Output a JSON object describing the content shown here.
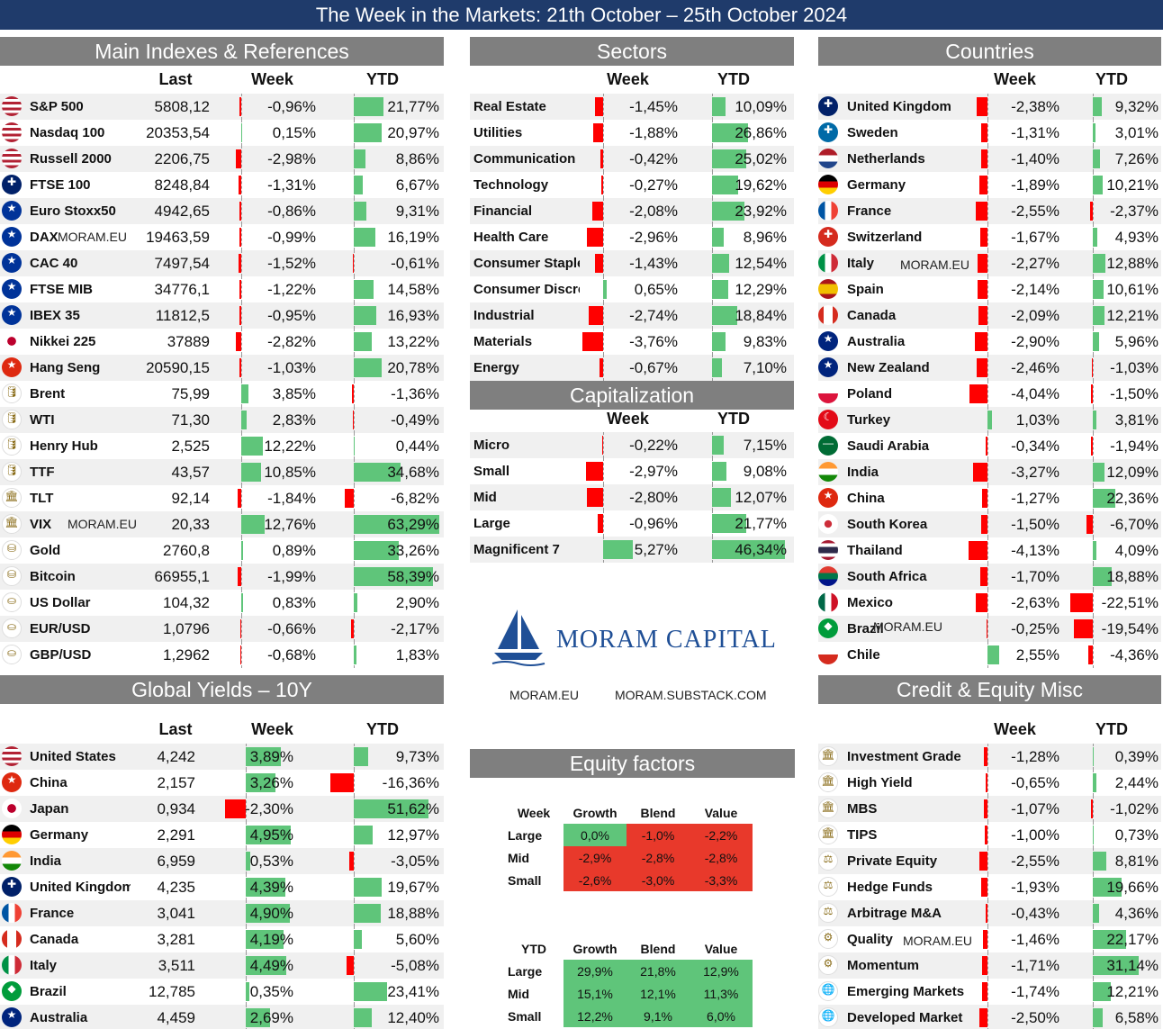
{
  "title": "The Week in the Markets: 21th October – 25th October 2024",
  "watermark": "MORAM.EU",
  "colors": {
    "banner": "#1f3b6b",
    "section": "#7f7f7f",
    "positive": "#5fc57a",
    "negative": "#ff0000"
  },
  "logo": {
    "text": "MORAM CAPITAL",
    "icon": "sailboat-icon"
  },
  "links": [
    "MORAM.EU",
    "MORAM.SUBSTACK.COM"
  ],
  "chart_data": [
    {
      "type": "table",
      "title": "Main Indexes & References",
      "columns": [
        "Last",
        "Week",
        "YTD"
      ],
      "rows": [
        {
          "icon": "us-flag",
          "name": "S&P 500",
          "last": "5808,12",
          "week": -0.96,
          "ytd": 21.77,
          "week_text": "-0,96%",
          "ytd_text": "21,77%"
        },
        {
          "icon": "us-flag",
          "name": "Nasdaq 100",
          "last": "20353,54",
          "week": 0.15,
          "ytd": 20.97,
          "week_text": "0,15%",
          "ytd_text": "20,97%"
        },
        {
          "icon": "us-flag",
          "name": "Russell 2000",
          "last": "2206,75",
          "week": -2.98,
          "ytd": 8.86,
          "week_text": "-2,98%",
          "ytd_text": "8,86%"
        },
        {
          "icon": "uk-flag",
          "name": "FTSE 100",
          "last": "8248,84",
          "week": -1.31,
          "ytd": 6.67,
          "week_text": "-1,31%",
          "ytd_text": "6,67%"
        },
        {
          "icon": "eu-flag",
          "name": "Euro Stoxx50",
          "last": "4942,65",
          "week": -0.86,
          "ytd": 9.31,
          "week_text": "-0,86%",
          "ytd_text": "9,31%"
        },
        {
          "icon": "eu-flag",
          "name": "DAX",
          "last": "19463,59",
          "week": -0.99,
          "ytd": 16.19,
          "week_text": "-0,99%",
          "ytd_text": "16,19%"
        },
        {
          "icon": "eu-flag",
          "name": "CAC 40",
          "last": "7497,54",
          "week": -1.52,
          "ytd": -0.61,
          "week_text": "-1,52%",
          "ytd_text": "-0,61%"
        },
        {
          "icon": "eu-flag",
          "name": "FTSE MIB",
          "last": "34776,1",
          "week": -1.22,
          "ytd": 14.58,
          "week_text": "-1,22%",
          "ytd_text": "14,58%"
        },
        {
          "icon": "eu-flag",
          "name": "IBEX 35",
          "last": "11812,5",
          "week": -0.95,
          "ytd": 16.93,
          "week_text": "-0,95%",
          "ytd_text": "16,93%"
        },
        {
          "icon": "japan-flag",
          "name": "Nikkei 225",
          "last": "37889",
          "week": -2.82,
          "ytd": 13.22,
          "week_text": "-2,82%",
          "ytd_text": "13,22%"
        },
        {
          "icon": "china-flag",
          "name": "Hang Seng",
          "last": "20590,15",
          "week": -1.03,
          "ytd": 20.78,
          "week_text": "-1,03%",
          "ytd_text": "20,78%"
        },
        {
          "icon": "oil-icon",
          "name": "Brent",
          "last": "75,99",
          "week": 3.85,
          "ytd": -1.36,
          "week_text": "3,85%",
          "ytd_text": "-1,36%"
        },
        {
          "icon": "oil-icon",
          "name": "WTI",
          "last": "71,30",
          "week": 2.83,
          "ytd": -0.49,
          "week_text": "2,83%",
          "ytd_text": "-0,49%"
        },
        {
          "icon": "oil-icon",
          "name": "Henry Hub",
          "last": "2,525",
          "week": 12.22,
          "ytd": 0.44,
          "week_text": "12,22%",
          "ytd_text": "0,44%"
        },
        {
          "icon": "oil-icon",
          "name": "TTF",
          "last": "43,57",
          "week": 10.85,
          "ytd": 34.68,
          "week_text": "10,85%",
          "ytd_text": "34,68%"
        },
        {
          "icon": "bank-icon",
          "name": "TLT",
          "last": "92,14",
          "week": -1.84,
          "ytd": -6.82,
          "week_text": "-1,84%",
          "ytd_text": "-6,82%"
        },
        {
          "icon": "bank-icon",
          "name": "VIX",
          "last": "20,33",
          "week": 12.76,
          "ytd": 63.29,
          "week_text": "12,76%",
          "ytd_text": "63,29%"
        },
        {
          "icon": "gold-icon",
          "name": "Gold",
          "last": "2760,8",
          "week": 0.89,
          "ytd": 33.26,
          "week_text": "0,89%",
          "ytd_text": "33,26%"
        },
        {
          "icon": "gold-icon",
          "name": "Bitcoin",
          "last": "66955,1",
          "week": -1.99,
          "ytd": 58.39,
          "week_text": "-1,99%",
          "ytd_text": "58,39%"
        },
        {
          "icon": "coins-icon",
          "name": "US Dollar",
          "last": "104,32",
          "week": 0.83,
          "ytd": 2.9,
          "week_text": "0,83%",
          "ytd_text": "2,90%"
        },
        {
          "icon": "coins-icon",
          "name": "EUR/USD",
          "last": "1,0796",
          "week": -0.66,
          "ytd": -2.17,
          "week_text": "-0,66%",
          "ytd_text": "-2,17%"
        },
        {
          "icon": "coins-icon",
          "name": "GBP/USD",
          "last": "1,2962",
          "week": -0.68,
          "ytd": 1.83,
          "week_text": "-0,68%",
          "ytd_text": "1,83%"
        }
      ]
    },
    {
      "type": "table",
      "title": "Global Yields – 10Y",
      "columns": [
        "Last",
        "Week",
        "YTD"
      ],
      "rows": [
        {
          "icon": "us-flag",
          "name": "United States",
          "last": "4,242",
          "week": 3.89,
          "ytd": 9.73,
          "week_text": "3,89%",
          "ytd_text": "9,73%"
        },
        {
          "icon": "china-flag",
          "name": "China",
          "last": "2,157",
          "week": 3.26,
          "ytd": -16.36,
          "week_text": "3,26%",
          "ytd_text": "-16,36%"
        },
        {
          "icon": "japan-flag",
          "name": "Japan",
          "last": "0,934",
          "week": -2.3,
          "ytd": 51.62,
          "week_text": "-2,30%",
          "ytd_text": "51,62%"
        },
        {
          "icon": "germany-flag",
          "name": "Germany",
          "last": "2,291",
          "week": 4.95,
          "ytd": 12.97,
          "week_text": "4,95%",
          "ytd_text": "12,97%"
        },
        {
          "icon": "india-flag",
          "name": "India",
          "last": "6,959",
          "week": 0.53,
          "ytd": -3.05,
          "week_text": "0,53%",
          "ytd_text": "-3,05%"
        },
        {
          "icon": "uk-flag",
          "name": "United Kingdom",
          "last": "4,235",
          "week": 4.39,
          "ytd": 19.67,
          "week_text": "4,39%",
          "ytd_text": "19,67%"
        },
        {
          "icon": "france-flag",
          "name": "France",
          "last": "3,041",
          "week": 4.9,
          "ytd": 18.88,
          "week_text": "4,90%",
          "ytd_text": "18,88%"
        },
        {
          "icon": "canada-flag",
          "name": "Canada",
          "last": "3,281",
          "week": 4.19,
          "ytd": 5.6,
          "week_text": "4,19%",
          "ytd_text": "5,60%"
        },
        {
          "icon": "italy-flag",
          "name": "Italy",
          "last": "3,511",
          "week": 4.49,
          "ytd": -5.08,
          "week_text": "4,49%",
          "ytd_text": "-5,08%"
        },
        {
          "icon": "brazil-flag",
          "name": "Brazil",
          "last": "12,785",
          "week": 0.35,
          "ytd": 23.41,
          "week_text": "0,35%",
          "ytd_text": "23,41%"
        },
        {
          "icon": "australia-flag",
          "name": "Australia",
          "last": "4,459",
          "week": 2.69,
          "ytd": 12.4,
          "week_text": "2,69%",
          "ytd_text": "12,40%"
        }
      ]
    },
    {
      "type": "table",
      "title": "Sectors",
      "columns": [
        "Week",
        "YTD"
      ],
      "rows": [
        {
          "name": "Real Estate",
          "week": -1.45,
          "ytd": 10.09,
          "week_text": "-1,45%",
          "ytd_text": "10,09%"
        },
        {
          "name": "Utilities",
          "week": -1.88,
          "ytd": 26.86,
          "week_text": "-1,88%",
          "ytd_text": "26,86%"
        },
        {
          "name": "Communication",
          "week": -0.42,
          "ytd": 25.02,
          "week_text": "-0,42%",
          "ytd_text": "25,02%"
        },
        {
          "name": "Technology",
          "week": -0.27,
          "ytd": 19.62,
          "week_text": "-0,27%",
          "ytd_text": "19,62%"
        },
        {
          "name": "Financial",
          "week": -2.08,
          "ytd": 23.92,
          "week_text": "-2,08%",
          "ytd_text": "23,92%"
        },
        {
          "name": "Health Care",
          "week": -2.96,
          "ytd": 8.96,
          "week_text": "-2,96%",
          "ytd_text": "8,96%"
        },
        {
          "name": "Consumer Staple",
          "week": -1.43,
          "ytd": 12.54,
          "week_text": "-1,43%",
          "ytd_text": "12,54%"
        },
        {
          "name": "Consumer Discre",
          "week": 0.65,
          "ytd": 12.29,
          "week_text": "0,65%",
          "ytd_text": "12,29%"
        },
        {
          "name": "Industrial",
          "week": -2.74,
          "ytd": 18.84,
          "week_text": "-2,74%",
          "ytd_text": "18,84%"
        },
        {
          "name": "Materials",
          "week": -3.76,
          "ytd": 9.83,
          "week_text": "-3,76%",
          "ytd_text": "9,83%"
        },
        {
          "name": "Energy",
          "week": -0.67,
          "ytd": 7.1,
          "week_text": "-0,67%",
          "ytd_text": "7,10%"
        }
      ]
    },
    {
      "type": "table",
      "title": "Capitalization",
      "columns": [
        "Week",
        "YTD"
      ],
      "rows": [
        {
          "name": "Micro",
          "week": -0.22,
          "ytd": 7.15,
          "week_text": "-0,22%",
          "ytd_text": "7,15%"
        },
        {
          "name": "Small",
          "week": -2.97,
          "ytd": 9.08,
          "week_text": "-2,97%",
          "ytd_text": "9,08%"
        },
        {
          "name": "Mid",
          "week": -2.8,
          "ytd": 12.07,
          "week_text": "-2,80%",
          "ytd_text": "12,07%"
        },
        {
          "name": "Large",
          "week": -0.96,
          "ytd": 21.77,
          "week_text": "-0,96%",
          "ytd_text": "21,77%"
        },
        {
          "name": "Magnificent 7",
          "week": 5.27,
          "ytd": 46.34,
          "week_text": "5,27%",
          "ytd_text": "46,34%"
        }
      ]
    },
    {
      "type": "table",
      "title": "Countries",
      "columns": [
        "Week",
        "YTD"
      ],
      "rows": [
        {
          "icon": "uk-flag",
          "name": "United Kingdom",
          "week": -2.38,
          "ytd": 9.32,
          "week_text": "-2,38%",
          "ytd_text": "9,32%"
        },
        {
          "icon": "sweden-flag",
          "name": "Sweden",
          "week": -1.31,
          "ytd": 3.01,
          "week_text": "-1,31%",
          "ytd_text": "3,01%"
        },
        {
          "icon": "netherlands-flag",
          "name": "Netherlands",
          "week": -1.4,
          "ytd": 7.26,
          "week_text": "-1,40%",
          "ytd_text": "7,26%"
        },
        {
          "icon": "germany-flag",
          "name": "Germany",
          "week": -1.89,
          "ytd": 10.21,
          "week_text": "-1,89%",
          "ytd_text": "10,21%"
        },
        {
          "icon": "france-flag",
          "name": "France",
          "week": -2.55,
          "ytd": -2.37,
          "week_text": "-2,55%",
          "ytd_text": "-2,37%"
        },
        {
          "icon": "switzerland-flag",
          "name": "Switzerland",
          "week": -1.67,
          "ytd": 4.93,
          "week_text": "-1,67%",
          "ytd_text": "4,93%"
        },
        {
          "icon": "italy-flag",
          "name": "Italy",
          "week": -2.27,
          "ytd": 12.88,
          "week_text": "-2,27%",
          "ytd_text": "12,88%"
        },
        {
          "icon": "spain-flag",
          "name": "Spain",
          "week": -2.14,
          "ytd": 10.61,
          "week_text": "-2,14%",
          "ytd_text": "10,61%"
        },
        {
          "icon": "canada-flag",
          "name": "Canada",
          "week": -2.09,
          "ytd": 12.21,
          "week_text": "-2,09%",
          "ytd_text": "12,21%"
        },
        {
          "icon": "australia-flag",
          "name": "Australia",
          "week": -2.9,
          "ytd": 5.96,
          "week_text": "-2,90%",
          "ytd_text": "5,96%"
        },
        {
          "icon": "newzealand-flag",
          "name": "New Zealand",
          "week": -2.46,
          "ytd": -1.03,
          "week_text": "-2,46%",
          "ytd_text": "-1,03%"
        },
        {
          "icon": "poland-flag",
          "name": "Poland",
          "week": -4.04,
          "ytd": -1.5,
          "week_text": "-4,04%",
          "ytd_text": "-1,50%"
        },
        {
          "icon": "turkey-flag",
          "name": "Turkey",
          "week": 1.03,
          "ytd": 3.81,
          "week_text": "1,03%",
          "ytd_text": "3,81%"
        },
        {
          "icon": "saudi-flag",
          "name": "Saudi Arabia",
          "week": -0.34,
          "ytd": -1.94,
          "week_text": "-0,34%",
          "ytd_text": "-1,94%"
        },
        {
          "icon": "india-flag",
          "name": "India",
          "week": -3.27,
          "ytd": 12.09,
          "week_text": "-3,27%",
          "ytd_text": "12,09%"
        },
        {
          "icon": "china-flag",
          "name": "China",
          "week": -1.27,
          "ytd": 22.36,
          "week_text": "-1,27%",
          "ytd_text": "22,36%"
        },
        {
          "icon": "korea-flag",
          "name": "South Korea",
          "week": -1.5,
          "ytd": -6.7,
          "week_text": "-1,50%",
          "ytd_text": "-6,70%"
        },
        {
          "icon": "thailand-flag",
          "name": "Thailand",
          "week": -4.13,
          "ytd": 4.09,
          "week_text": "-4,13%",
          "ytd_text": "4,09%"
        },
        {
          "icon": "southafrica-flag",
          "name": "South Africa",
          "week": -1.7,
          "ytd": 18.88,
          "week_text": "-1,70%",
          "ytd_text": "18,88%"
        },
        {
          "icon": "mexico-flag",
          "name": "Mexico",
          "week": -2.63,
          "ytd": -22.51,
          "week_text": "-2,63%",
          "ytd_text": "-22,51%"
        },
        {
          "icon": "brazil-flag",
          "name": "Brazil",
          "week": -0.25,
          "ytd": -19.54,
          "week_text": "-0,25%",
          "ytd_text": "-19,54%"
        },
        {
          "icon": "chile-flag",
          "name": "Chile",
          "week": 2.55,
          "ytd": -4.36,
          "week_text": "2,55%",
          "ytd_text": "-4,36%"
        }
      ]
    },
    {
      "type": "table",
      "title": "Credit & Equity Misc",
      "columns": [
        "Week",
        "YTD"
      ],
      "rows": [
        {
          "icon": "bank-icon",
          "name": "Investment Grade",
          "week": -1.28,
          "ytd": 0.39,
          "week_text": "-1,28%",
          "ytd_text": "0,39%"
        },
        {
          "icon": "bank-icon",
          "name": "High Yield",
          "week": -0.65,
          "ytd": 2.44,
          "week_text": "-0,65%",
          "ytd_text": "2,44%"
        },
        {
          "icon": "bank-icon",
          "name": "MBS",
          "week": -1.07,
          "ytd": -1.02,
          "week_text": "-1,07%",
          "ytd_text": "-1,02%"
        },
        {
          "icon": "bank-icon",
          "name": "TIPS",
          "week": -1.0,
          "ytd": 0.73,
          "week_text": "-1,00%",
          "ytd_text": "0,73%"
        },
        {
          "icon": "scale-icon",
          "name": "Private Equity",
          "week": -2.55,
          "ytd": 8.81,
          "week_text": "-2,55%",
          "ytd_text": "8,81%"
        },
        {
          "icon": "scale-icon",
          "name": "Hedge Funds",
          "week": -1.93,
          "ytd": 19.66,
          "week_text": "-1,93%",
          "ytd_text": "19,66%"
        },
        {
          "icon": "scale-icon",
          "name": "Arbitrage M&A",
          "week": -0.43,
          "ytd": 4.36,
          "week_text": "-0,43%",
          "ytd_text": "4,36%"
        },
        {
          "icon": "gears-icon",
          "name": "Quality",
          "week": -1.46,
          "ytd": 22.17,
          "week_text": "-1,46%",
          "ytd_text": "22,17%"
        },
        {
          "icon": "gears-icon",
          "name": "Momentum",
          "week": -1.71,
          "ytd": 31.14,
          "week_text": "-1,71%",
          "ytd_text": "31,14%"
        },
        {
          "icon": "globe-icon",
          "name": "Emerging Markets",
          "week": -1.74,
          "ytd": 12.21,
          "week_text": "-1,74%",
          "ytd_text": "12,21%"
        },
        {
          "icon": "globe-icon",
          "name": "Developed Market",
          "week": -2.5,
          "ytd": 6.58,
          "week_text": "-2,50%",
          "ytd_text": "6,58%"
        }
      ]
    },
    {
      "type": "heatmap",
      "title": "Equity factors",
      "corner": "Week",
      "columns": [
        "Growth",
        "Blend",
        "Value"
      ],
      "rows": [
        "Large",
        "Mid",
        "Small"
      ],
      "values": [
        [
          "0,0%",
          "-1,0%",
          "-2,2%"
        ],
        [
          "-2,9%",
          "-2,8%",
          "-2,8%"
        ],
        [
          "-2,6%",
          "-3,0%",
          "-3,3%"
        ]
      ]
    },
    {
      "type": "heatmap",
      "corner": "YTD",
      "columns": [
        "Growth",
        "Blend",
        "Value"
      ],
      "rows": [
        "Large",
        "Mid",
        "Small"
      ],
      "values": [
        [
          "29,9%",
          "21,8%",
          "12,9%"
        ],
        [
          "15,1%",
          "12,1%",
          "11,3%"
        ],
        [
          "12,2%",
          "9,1%",
          "6,0%"
        ]
      ]
    }
  ]
}
